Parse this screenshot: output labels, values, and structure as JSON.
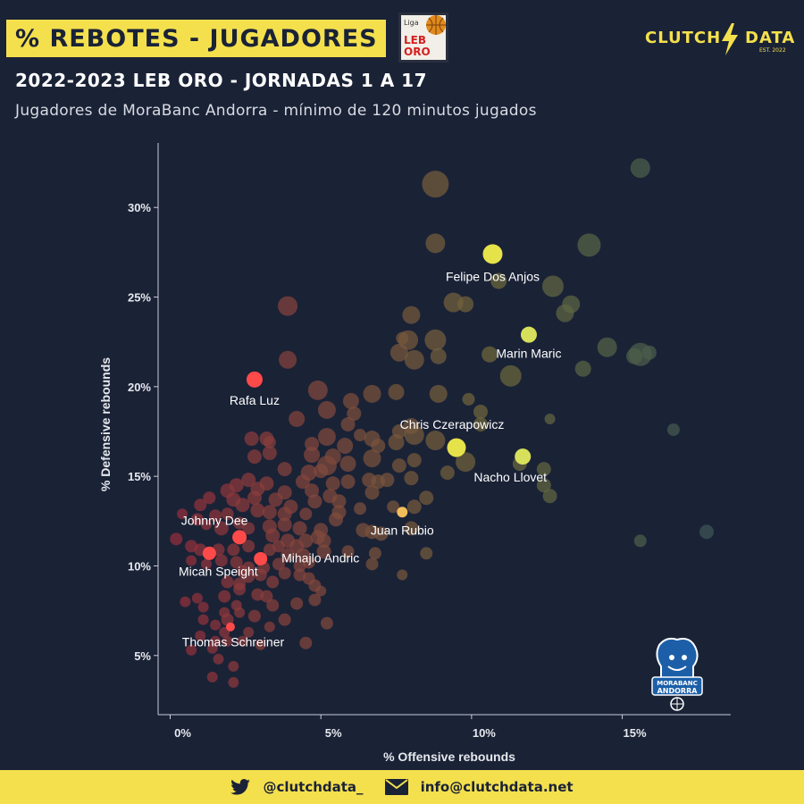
{
  "header": {
    "title": "% REBOTES - JUGADORES",
    "subtitle": "2022-2023 LEB ORO - JORNADAS 1 A 17",
    "caption": "Jugadores de MoraBanc Andorra - mínimo de 120 minutos jugados",
    "liga_logo": {
      "top": "Liga",
      "mid": "LEB",
      "bottom": "ORO"
    },
    "brand": {
      "left": "CLUTCH",
      "right": "DATA",
      "est": "EST. 2022"
    }
  },
  "team_logo": {
    "line1": "MORABANC",
    "line2": "ANDORRA"
  },
  "footer": {
    "twitter": "@clutchdata_",
    "email": "info@clutchdata.net"
  },
  "colors": {
    "background": "#1a2236",
    "accent": "#f4e04d",
    "highlight_red": "#ff4a4a",
    "highlight_yellow": "#e6e24a"
  },
  "chart_data": {
    "type": "scatter",
    "title": "% REBOTES - JUGADORES",
    "xlabel": "% Offensive rebounds",
    "ylabel": "% Defensive rebounds",
    "xlim": [
      -0.4,
      18.6
    ],
    "ylim": [
      1.7,
      33.6
    ],
    "x_ticks": [
      0,
      5,
      10,
      15
    ],
    "x_tick_labels": [
      "0%",
      "5%",
      "10%",
      "15%"
    ],
    "y_ticks": [
      5,
      10,
      15,
      20,
      25,
      30
    ],
    "y_tick_labels": [
      "5%",
      "10%",
      "15%",
      "20%",
      "25%",
      "30%"
    ],
    "grid": false,
    "highlighted": [
      {
        "name": "Felipe Dos Anjos",
        "x": 10.7,
        "y": 27.4,
        "size": 11,
        "color": "#e6e24a"
      },
      {
        "name": "Marin Maric",
        "x": 11.9,
        "y": 22.9,
        "size": 9,
        "color": "#d7e05a"
      },
      {
        "name": "Chris Czerapowicz",
        "x": 9.5,
        "y": 16.6,
        "size": 10.5,
        "color": "#e6e24a"
      },
      {
        "name": "Nacho Llovet",
        "x": 11.7,
        "y": 16.1,
        "size": 9,
        "color": "#d7e05a"
      },
      {
        "name": "Juan Rubio",
        "x": 7.7,
        "y": 13.0,
        "size": 6,
        "color": "#f0bd5a"
      },
      {
        "name": "Rafa Luz",
        "x": 2.8,
        "y": 20.4,
        "size": 9,
        "color": "#ff4a4a"
      },
      {
        "name": "Johnny Dee",
        "x": 2.3,
        "y": 11.6,
        "size": 8,
        "color": "#ff4a4a"
      },
      {
        "name": "Micah Speight",
        "x": 1.3,
        "y": 10.7,
        "size": 7.5,
        "color": "#ff4a4a"
      },
      {
        "name": "Mihajlo Andric",
        "x": 3.0,
        "y": 10.4,
        "size": 7.5,
        "color": "#ff4a4a"
      },
      {
        "name": "Thomas Schreiner",
        "x": 2.0,
        "y": 6.6,
        "size": 5,
        "color": "#ff4a4a"
      }
    ],
    "others": [
      [
        15.6,
        32.2,
        11
      ],
      [
        8.8,
        31.3,
        15
      ],
      [
        13.9,
        27.9,
        13
      ],
      [
        8.8,
        28.0,
        11
      ],
      [
        10.9,
        25.9,
        9
      ],
      [
        12.7,
        25.6,
        12
      ],
      [
        9.4,
        24.7,
        11
      ],
      [
        9.8,
        24.6,
        9
      ],
      [
        13.1,
        24.1,
        10
      ],
      [
        13.3,
        24.6,
        10
      ],
      [
        8.0,
        24.0,
        10
      ],
      [
        3.9,
        24.5,
        11
      ],
      [
        7.7,
        22.7,
        7
      ],
      [
        7.9,
        22.6,
        11
      ],
      [
        8.8,
        22.6,
        12
      ],
      [
        14.5,
        22.2,
        11
      ],
      [
        15.6,
        21.8,
        13
      ],
      [
        15.4,
        21.7,
        9
      ],
      [
        15.9,
        21.9,
        8
      ],
      [
        10.6,
        21.8,
        9
      ],
      [
        7.6,
        21.9,
        10
      ],
      [
        8.1,
        21.5,
        11
      ],
      [
        8.9,
        21.7,
        9
      ],
      [
        13.7,
        21.0,
        9
      ],
      [
        11.3,
        20.6,
        12
      ],
      [
        3.9,
        21.5,
        10
      ],
      [
        7.5,
        19.7,
        9
      ],
      [
        8.9,
        19.6,
        10
      ],
      [
        9.9,
        19.3,
        7
      ],
      [
        4.9,
        19.8,
        11
      ],
      [
        6.7,
        19.6,
        10
      ],
      [
        6.0,
        19.2,
        9
      ],
      [
        6.1,
        18.5,
        8
      ],
      [
        5.2,
        18.7,
        10
      ],
      [
        4.2,
        18.2,
        9
      ],
      [
        10.3,
        18.6,
        8
      ],
      [
        12.6,
        18.2,
        6
      ],
      [
        10.3,
        17.9,
        8
      ],
      [
        8.0,
        17.8,
        9
      ],
      [
        7.6,
        17.5,
        8
      ],
      [
        6.7,
        17.1,
        9
      ],
      [
        5.9,
        17.9,
        8
      ],
      [
        16.7,
        17.6,
        7
      ],
      [
        6.3,
        17.3,
        7
      ],
      [
        5.2,
        17.2,
        10
      ],
      [
        4.7,
        16.8,
        8
      ],
      [
        3.2,
        17.1,
        8
      ],
      [
        2.7,
        17.1,
        8
      ],
      [
        8.1,
        17.3,
        11
      ],
      [
        8.8,
        17.0,
        11
      ],
      [
        7.5,
        16.9,
        9
      ],
      [
        6.9,
        16.7,
        8
      ],
      [
        5.8,
        16.7,
        9
      ],
      [
        5.4,
        16.1,
        9
      ],
      [
        4.7,
        16.2,
        9
      ],
      [
        3.3,
        16.9,
        7
      ],
      [
        3.3,
        16.3,
        8
      ],
      [
        2.8,
        16.1,
        8
      ],
      [
        11.6,
        15.7,
        8
      ],
      [
        12.4,
        15.4,
        8
      ],
      [
        9.8,
        15.8,
        11
      ],
      [
        8.1,
        15.9,
        8
      ],
      [
        7.6,
        15.6,
        8
      ],
      [
        6.7,
        16.0,
        10
      ],
      [
        5.9,
        15.7,
        9
      ],
      [
        5.2,
        15.6,
        11
      ],
      [
        5.0,
        15.3,
        8
      ],
      [
        4.6,
        15.2,
        9
      ],
      [
        3.8,
        15.4,
        8
      ],
      [
        9.2,
        15.2,
        8
      ],
      [
        8.0,
        14.9,
        8
      ],
      [
        7.2,
        14.8,
        8
      ],
      [
        6.9,
        14.7,
        8
      ],
      [
        6.6,
        14.8,
        8
      ],
      [
        5.9,
        14.7,
        8
      ],
      [
        5.4,
        14.6,
        8
      ],
      [
        4.7,
        14.2,
        8
      ],
      [
        4.4,
        14.7,
        8
      ],
      [
        3.2,
        14.6,
        8
      ],
      [
        2.9,
        14.3,
        8
      ],
      [
        2.6,
        14.8,
        8
      ],
      [
        2.2,
        14.5,
        8
      ],
      [
        1.3,
        13.8,
        7
      ],
      [
        1.0,
        13.4,
        7
      ],
      [
        1.9,
        14.2,
        8
      ],
      [
        2.1,
        13.7,
        8
      ],
      [
        2.4,
        13.4,
        8
      ],
      [
        2.8,
        13.8,
        8
      ],
      [
        3.5,
        13.7,
        8
      ],
      [
        3.8,
        14.1,
        8
      ],
      [
        4.0,
        13.3,
        8
      ],
      [
        4.8,
        13.6,
        8
      ],
      [
        5.3,
        13.9,
        8
      ],
      [
        5.6,
        13.6,
        8
      ],
      [
        6.7,
        14.1,
        8
      ],
      [
        8.5,
        13.8,
        8
      ],
      [
        12.6,
        13.9,
        8
      ],
      [
        12.4,
        14.5,
        8
      ],
      [
        8.1,
        13.3,
        8
      ],
      [
        7.4,
        13.3,
        7
      ],
      [
        6.3,
        13.2,
        7
      ],
      [
        5.6,
        13.0,
        8
      ],
      [
        4.5,
        12.9,
        7
      ],
      [
        3.8,
        12.9,
        8
      ],
      [
        3.3,
        13.0,
        8
      ],
      [
        2.9,
        13.1,
        8
      ],
      [
        1.9,
        12.9,
        7
      ],
      [
        1.5,
        12.8,
        7
      ],
      [
        0.9,
        12.6,
        7
      ],
      [
        0.4,
        12.9,
        6
      ],
      [
        1.2,
        12.3,
        6
      ],
      [
        1.7,
        12.1,
        8
      ],
      [
        2.3,
        12.4,
        7
      ],
      [
        2.6,
        12.1,
        7
      ],
      [
        3.3,
        12.2,
        8
      ],
      [
        3.8,
        12.3,
        8
      ],
      [
        4.3,
        12.1,
        8
      ],
      [
        5.0,
        12.0,
        8
      ],
      [
        5.5,
        12.6,
        8
      ],
      [
        6.4,
        12.0,
        8
      ],
      [
        6.7,
        11.9,
        8
      ],
      [
        7.0,
        11.8,
        8
      ],
      [
        8.0,
        12.1,
        8
      ],
      [
        3.4,
        11.7,
        8
      ],
      [
        3.9,
        11.4,
        8
      ],
      [
        4.5,
        11.4,
        8
      ],
      [
        4.9,
        11.6,
        8
      ],
      [
        5.1,
        11.4,
        8
      ],
      [
        3.6,
        11.1,
        7
      ],
      [
        4.2,
        11.1,
        8
      ],
      [
        0.2,
        11.5,
        7
      ],
      [
        0.7,
        11.1,
        7
      ],
      [
        1.0,
        10.9,
        7
      ],
      [
        1.6,
        10.9,
        7
      ],
      [
        2.1,
        10.9,
        7
      ],
      [
        2.6,
        11.1,
        7
      ],
      [
        3.3,
        10.9,
        7
      ],
      [
        3.9,
        10.6,
        8
      ],
      [
        4.4,
        10.6,
        8
      ],
      [
        5.1,
        10.8,
        8
      ],
      [
        5.9,
        10.8,
        7
      ],
      [
        6.8,
        10.7,
        7
      ],
      [
        8.5,
        10.7,
        7
      ],
      [
        0.7,
        10.3,
        6
      ],
      [
        1.2,
        10.1,
        6
      ],
      [
        1.7,
        10.3,
        7
      ],
      [
        2.2,
        10.2,
        7
      ],
      [
        2.6,
        9.9,
        7
      ],
      [
        3.1,
        9.9,
        7
      ],
      [
        3.6,
        10.1,
        7
      ],
      [
        4.3,
        10.0,
        7
      ],
      [
        4.6,
        10.2,
        7
      ],
      [
        6.7,
        10.1,
        7
      ],
      [
        15.6,
        11.4,
        7
      ],
      [
        17.8,
        11.9,
        8
      ],
      [
        7.7,
        9.5,
        6
      ],
      [
        2.4,
        9.7,
        7
      ],
      [
        2.6,
        9.4,
        7
      ],
      [
        3.0,
        9.5,
        7
      ],
      [
        3.8,
        9.6,
        7
      ],
      [
        4.3,
        9.5,
        7
      ],
      [
        4.6,
        9.3,
        7
      ],
      [
        1.9,
        9.1,
        7
      ],
      [
        2.3,
        9.0,
        7
      ],
      [
        3.4,
        9.1,
        7
      ],
      [
        4.8,
        8.9,
        7
      ],
      [
        5.0,
        8.6,
        6
      ],
      [
        2.3,
        8.7,
        7
      ],
      [
        2.9,
        8.4,
        7
      ],
      [
        0.5,
        8.0,
        6
      ],
      [
        0.9,
        8.2,
        6
      ],
      [
        1.8,
        8.3,
        7
      ],
      [
        2.2,
        7.8,
        6
      ],
      [
        3.2,
        8.3,
        7
      ],
      [
        3.4,
        7.8,
        7
      ],
      [
        4.2,
        7.9,
        7
      ],
      [
        4.8,
        8.1,
        7
      ],
      [
        1.1,
        7.7,
        6
      ],
      [
        1.8,
        7.4,
        6
      ],
      [
        1.9,
        7.0,
        7
      ],
      [
        2.3,
        7.4,
        6
      ],
      [
        2.8,
        7.2,
        7
      ],
      [
        3.8,
        7.0,
        7
      ],
      [
        1.1,
        7.0,
        6
      ],
      [
        1.5,
        6.7,
        6
      ],
      [
        1.8,
        6.3,
        6
      ],
      [
        2.6,
        6.3,
        6
      ],
      [
        3.3,
        6.6,
        6
      ],
      [
        5.2,
        6.8,
        7
      ],
      [
        1.0,
        6.1,
        6
      ],
      [
        1.5,
        5.8,
        6
      ],
      [
        1.9,
        5.8,
        6
      ],
      [
        2.4,
        5.8,
        6
      ],
      [
        3.0,
        5.6,
        6
      ],
      [
        4.5,
        5.7,
        7
      ],
      [
        0.7,
        5.3,
        6
      ],
      [
        1.4,
        5.4,
        6
      ],
      [
        1.6,
        4.8,
        6
      ],
      [
        2.1,
        4.4,
        6
      ],
      [
        1.4,
        3.8,
        6
      ],
      [
        2.1,
        3.5,
        6
      ]
    ]
  }
}
